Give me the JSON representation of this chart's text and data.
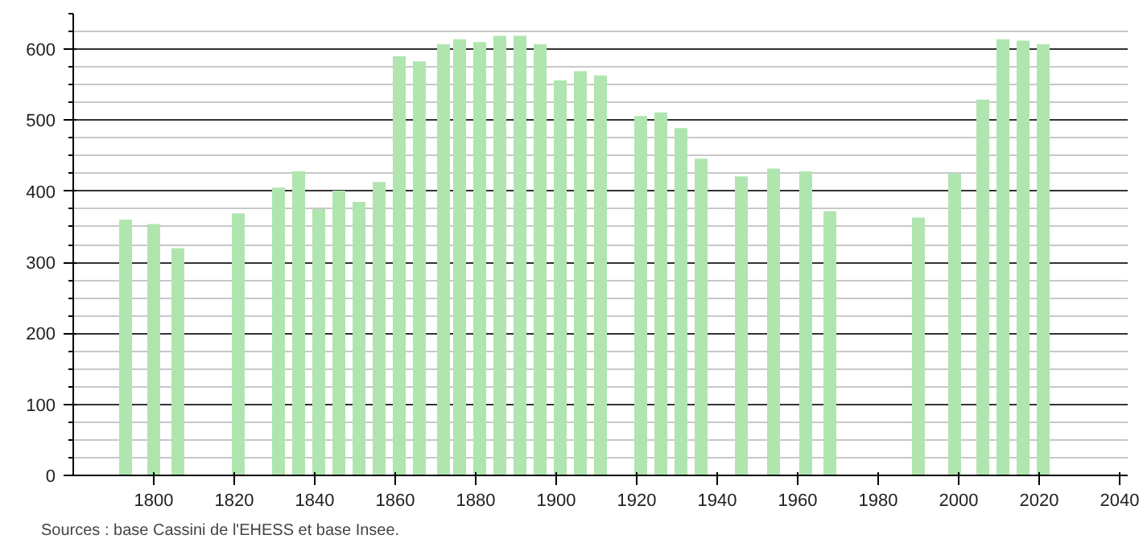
{
  "chart_data": {
    "type": "bar",
    "x": [
      1793,
      1800,
      1806,
      1821,
      1831,
      1836,
      1841,
      1846,
      1851,
      1856,
      1861,
      1866,
      1872,
      1876,
      1881,
      1886,
      1891,
      1896,
      1901,
      1906,
      1911,
      1921,
      1926,
      1931,
      1936,
      1946,
      1954,
      1962,
      1968,
      1990,
      1999,
      2006,
      2011,
      2016,
      2021
    ],
    "values": [
      360,
      354,
      320,
      369,
      405,
      428,
      375,
      401,
      385,
      413,
      590,
      583,
      607,
      614,
      610,
      619,
      619,
      607,
      556,
      569,
      563,
      506,
      511,
      489,
      446,
      421,
      432,
      428,
      372,
      363,
      425,
      529,
      614,
      612,
      607
    ],
    "color": "#b0e5b0",
    "xlim": [
      1780,
      2042
    ],
    "xticks": [
      1800,
      1820,
      1840,
      1860,
      1880,
      1900,
      1920,
      1940,
      1960,
      1980,
      2000,
      2020,
      2040
    ],
    "ylim": [
      0,
      650
    ],
    "yticks": [
      0,
      100,
      200,
      300,
      400,
      500,
      600
    ],
    "grid": "y",
    "annotations": [
      "Sources : base Cassini de l'EHESS et base Insee."
    ]
  }
}
